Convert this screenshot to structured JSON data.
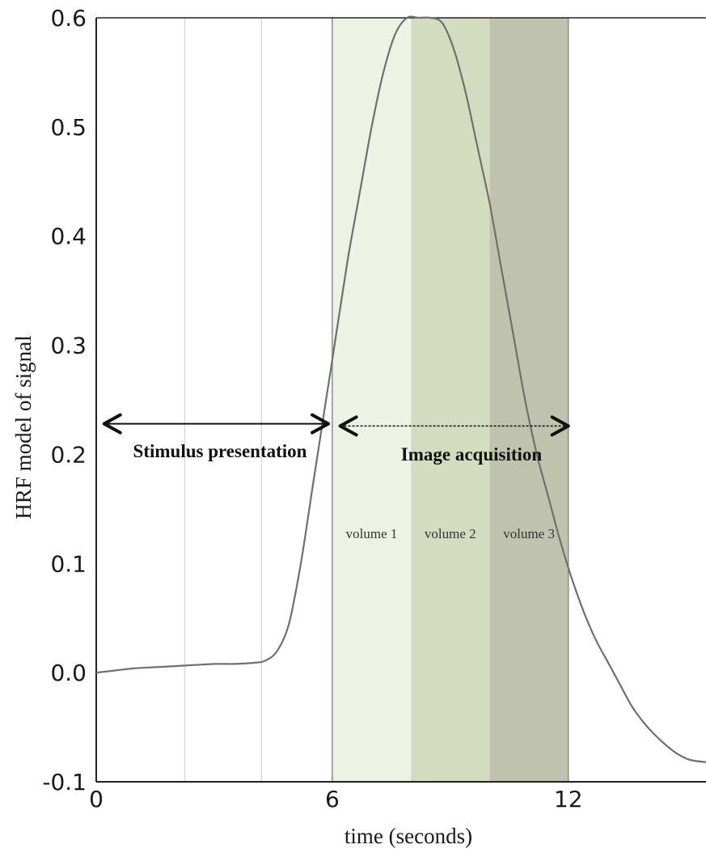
{
  "chart_data": {
    "type": "line",
    "title": "",
    "xlabel": "time (seconds)",
    "ylabel": "HRF model of signal",
    "xlim": [
      0,
      15.5
    ],
    "ylim": [
      -0.1,
      0.6
    ],
    "x_ticks": [
      0,
      6,
      12
    ],
    "x_tick_labels": [
      "0",
      "6",
      "12"
    ],
    "y_ticks": [
      -0.1,
      0.0,
      0.1,
      0.2,
      0.3,
      0.4,
      0.5,
      0.6
    ],
    "y_tick_labels": [
      "-0.1",
      "0.0",
      "0.1",
      "0.2",
      "0.3",
      "0.4",
      "0.5",
      "0.6"
    ],
    "grid_x": [
      2.25,
      4.2
    ],
    "colors": {
      "line": "#707070",
      "grid": "#d9d9d9",
      "band1": "#eef2e4",
      "band2": "#d3dcbe",
      "band3": "#bfc2ad",
      "axis": "#222222",
      "arrow": "#111111"
    },
    "series": [
      {
        "x": [
          0,
          0.5,
          1,
          1.5,
          2,
          2.5,
          3,
          3.5,
          4,
          4.3,
          4.6,
          4.9,
          5.2,
          5.5,
          5.8,
          6.1,
          6.4,
          6.7,
          7,
          7.3,
          7.6,
          7.9,
          8.2,
          8.5,
          8.8,
          9.1,
          9.4,
          9.7,
          10,
          10.3,
          10.6,
          10.9,
          11.2,
          11.5,
          11.8,
          12.1,
          12.4,
          12.7,
          13,
          13.3,
          13.6,
          13.9,
          14.2,
          14.5,
          14.8,
          15.1,
          15.5
        ],
        "y": [
          0.0,
          0.002,
          0.004,
          0.005,
          0.006,
          0.007,
          0.008,
          0.008,
          0.009,
          0.011,
          0.02,
          0.045,
          0.1,
          0.17,
          0.24,
          0.31,
          0.38,
          0.44,
          0.5,
          0.55,
          0.585,
          0.6,
          0.6,
          0.6,
          0.595,
          0.57,
          0.53,
          0.48,
          0.43,
          0.37,
          0.31,
          0.25,
          0.2,
          0.16,
          0.12,
          0.085,
          0.055,
          0.03,
          0.01,
          -0.01,
          -0.03,
          -0.045,
          -0.057,
          -0.067,
          -0.075,
          -0.08,
          -0.082
        ]
      }
    ],
    "bands": [
      {
        "start": 6,
        "end": 8,
        "label": "volume 1"
      },
      {
        "start": 8,
        "end": 10,
        "label": "volume 2"
      },
      {
        "start": 10,
        "end": 12,
        "label": "volume 3"
      }
    ],
    "annotations": {
      "stimulus": {
        "label": "Stimulus presentation",
        "start": 0.2,
        "end": 5.9,
        "y": 0.228
      },
      "acquisition": {
        "label": "Image acquisition",
        "start": 6.2,
        "end": 12,
        "y": 0.226
      }
    }
  }
}
